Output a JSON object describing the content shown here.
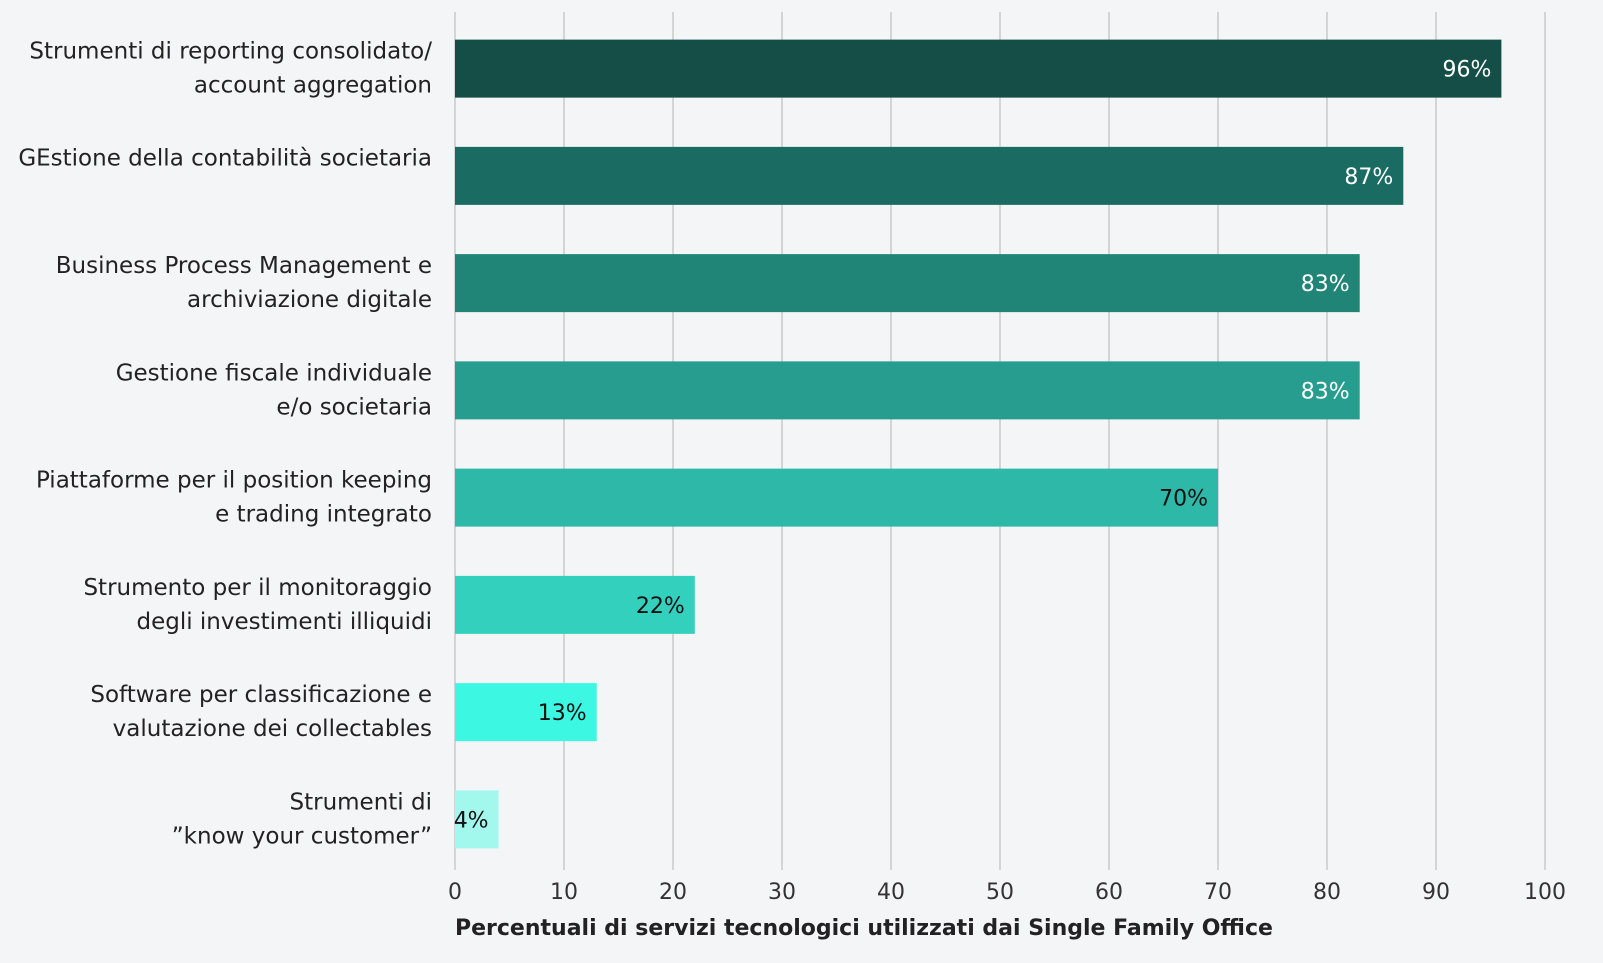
{
  "chart_data": {
    "type": "barh",
    "xlabel": "Percentuali di servizi tecnologici utilizzati dai Single Family Office",
    "categories": [
      "Strumenti di reporting consolidato/\naccount aggregation",
      "GEstione della contabilità societaria",
      "Business Process Management e\narchiviazione digitale",
      "Gestione fiscale individuale\ne/o societaria",
      "Piattaforme per il position keeping\ne trading integrato",
      "Strumento per il monitoraggio\ndegli investimenti illiquidi",
      "Software per classificazione e\nvalutazione dei collectables",
      "Strumenti di\n”know your customer”"
    ],
    "values": [
      96,
      87,
      83,
      83,
      70,
      22,
      13,
      4
    ],
    "value_labels": [
      "96%",
      "87%",
      "83%",
      "83%",
      "70%",
      "22%",
      "13%",
      "4%"
    ],
    "colors": [
      "#144e46",
      "#1a6b61",
      "#208477",
      "#279d90",
      "#2eb8a8",
      "#33d1bd",
      "#3cf7e2",
      "#a3f8ee"
    ],
    "xlim": [
      0,
      100
    ],
    "xticks": [
      0,
      10,
      20,
      30,
      40,
      50,
      60,
      70,
      80,
      90,
      100
    ],
    "grid": true
  }
}
